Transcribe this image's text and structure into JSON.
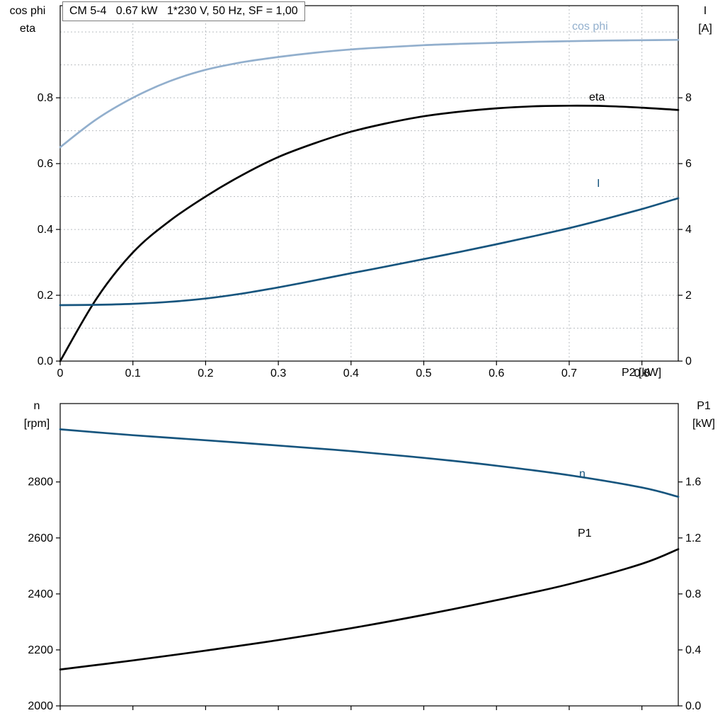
{
  "title": "CM 5-4   0.67 kW   1*230 V, 50 Hz, SF = 1,00",
  "colors": {
    "light_blue": "#92afcd",
    "dark_blue": "#17557e",
    "black": "#000000",
    "grid": "#b9bdc1"
  },
  "chart_data": [
    {
      "type": "line",
      "name": "efficiency-powerfactor-current-chart",
      "axis_labels": {
        "left_top": "cos phi",
        "left_bottom": "eta",
        "right_top": "I",
        "right_bottom": "[A]",
        "x": "P2 [kW]"
      },
      "xlim": [
        0,
        0.85
      ],
      "ylim_left": [
        0,
        1.08
      ],
      "ylim_right": [
        0,
        10.8
      ],
      "grid": true,
      "xgrid": [
        0.1,
        0.2,
        0.3,
        0.4,
        0.5,
        0.6,
        0.7,
        0.8
      ],
      "ygrid": [
        0.1,
        0.2,
        0.3,
        0.4,
        0.5,
        0.6,
        0.7,
        0.8,
        0.9,
        1.0
      ],
      "xticks": {
        "values": [
          0,
          0.1,
          0.2,
          0.3,
          0.4,
          0.5,
          0.6,
          0.7,
          0.8
        ],
        "labels": [
          "0",
          "0.1",
          "0.2",
          "0.3",
          "0.4",
          "0.5",
          "0.6",
          "0.7",
          "0.8"
        ]
      },
      "yticks_left": {
        "values": [
          0,
          0.2,
          0.4,
          0.6,
          0.8
        ],
        "labels": [
          "0.0",
          "0.2",
          "0.4",
          "0.6",
          "0.8"
        ]
      },
      "yticks_right": {
        "values": [
          0,
          2,
          4,
          6,
          8
        ],
        "labels": [
          "0",
          "2",
          "4",
          "6",
          "8"
        ]
      },
      "series": [
        {
          "id": "cos-phi",
          "name": "cos phi",
          "axis": "left",
          "color": "light_blue",
          "x": [
            0,
            0.05,
            0.1,
            0.15,
            0.2,
            0.25,
            0.3,
            0.35,
            0.4,
            0.45,
            0.5,
            0.55,
            0.6,
            0.65,
            0.7,
            0.75,
            0.8,
            0.85
          ],
          "y": [
            0.65,
            0.735,
            0.8,
            0.85,
            0.885,
            0.908,
            0.924,
            0.937,
            0.947,
            0.954,
            0.96,
            0.964,
            0.967,
            0.97,
            0.972,
            0.974,
            0.975,
            0.976
          ]
        },
        {
          "id": "eta",
          "name": "eta",
          "axis": "left",
          "color": "black",
          "x": [
            0,
            0.05,
            0.1,
            0.15,
            0.2,
            0.25,
            0.3,
            0.35,
            0.4,
            0.45,
            0.5,
            0.55,
            0.6,
            0.65,
            0.7,
            0.75,
            0.8,
            0.85
          ],
          "y": [
            0.0,
            0.19,
            0.33,
            0.425,
            0.5,
            0.565,
            0.62,
            0.662,
            0.697,
            0.723,
            0.744,
            0.758,
            0.768,
            0.774,
            0.776,
            0.775,
            0.77,
            0.763
          ]
        },
        {
          "id": "current",
          "name": "I",
          "axis": "right",
          "color": "dark_blue",
          "x": [
            0,
            0.05,
            0.1,
            0.15,
            0.2,
            0.25,
            0.3,
            0.35,
            0.4,
            0.45,
            0.5,
            0.55,
            0.6,
            0.65,
            0.7,
            0.75,
            0.8,
            0.85
          ],
          "y": [
            1.7,
            1.71,
            1.74,
            1.8,
            1.9,
            2.05,
            2.24,
            2.45,
            2.67,
            2.88,
            3.1,
            3.32,
            3.55,
            3.79,
            4.04,
            4.32,
            4.62,
            4.95
          ]
        }
      ]
    },
    {
      "type": "line",
      "name": "speed-inputpower-chart",
      "axis_labels": {
        "left_top": "n",
        "left_bottom": "[rpm]",
        "right_top": "P1",
        "right_bottom": "[kW]",
        "x": ""
      },
      "xlim": [
        0,
        0.85
      ],
      "ylim_left": [
        2000,
        3080
      ],
      "ylim_right": [
        0,
        2.16
      ],
      "grid": false,
      "xgrid": [],
      "ygrid": [],
      "xticks": {
        "values": [
          0,
          0.1,
          0.2,
          0.3,
          0.4,
          0.5,
          0.6,
          0.7,
          0.8
        ],
        "labels": []
      },
      "yticks_left": {
        "values": [
          2000,
          2200,
          2400,
          2600,
          2800
        ],
        "labels": [
          "2000",
          "2200",
          "2400",
          "2600",
          "2800"
        ]
      },
      "yticks_right": {
        "values": [
          0,
          0.4,
          0.8,
          1.2,
          1.6
        ],
        "labels": [
          "0.0",
          "0.4",
          "0.8",
          "1.2",
          "1.6"
        ]
      },
      "series": [
        {
          "id": "speed",
          "name": "n",
          "axis": "left",
          "color": "dark_blue",
          "x": [
            0,
            0.1,
            0.2,
            0.3,
            0.4,
            0.5,
            0.6,
            0.7,
            0.8,
            0.85
          ],
          "y": [
            2988,
            2967,
            2949,
            2930,
            2910,
            2886,
            2858,
            2824,
            2780,
            2747
          ]
        },
        {
          "id": "p1",
          "name": "P1",
          "axis": "right",
          "color": "black",
          "x": [
            0,
            0.1,
            0.2,
            0.3,
            0.4,
            0.5,
            0.6,
            0.7,
            0.8,
            0.85
          ],
          "y": [
            0.26,
            0.325,
            0.395,
            0.47,
            0.555,
            0.65,
            0.755,
            0.87,
            1.015,
            1.12
          ]
        }
      ]
    }
  ]
}
